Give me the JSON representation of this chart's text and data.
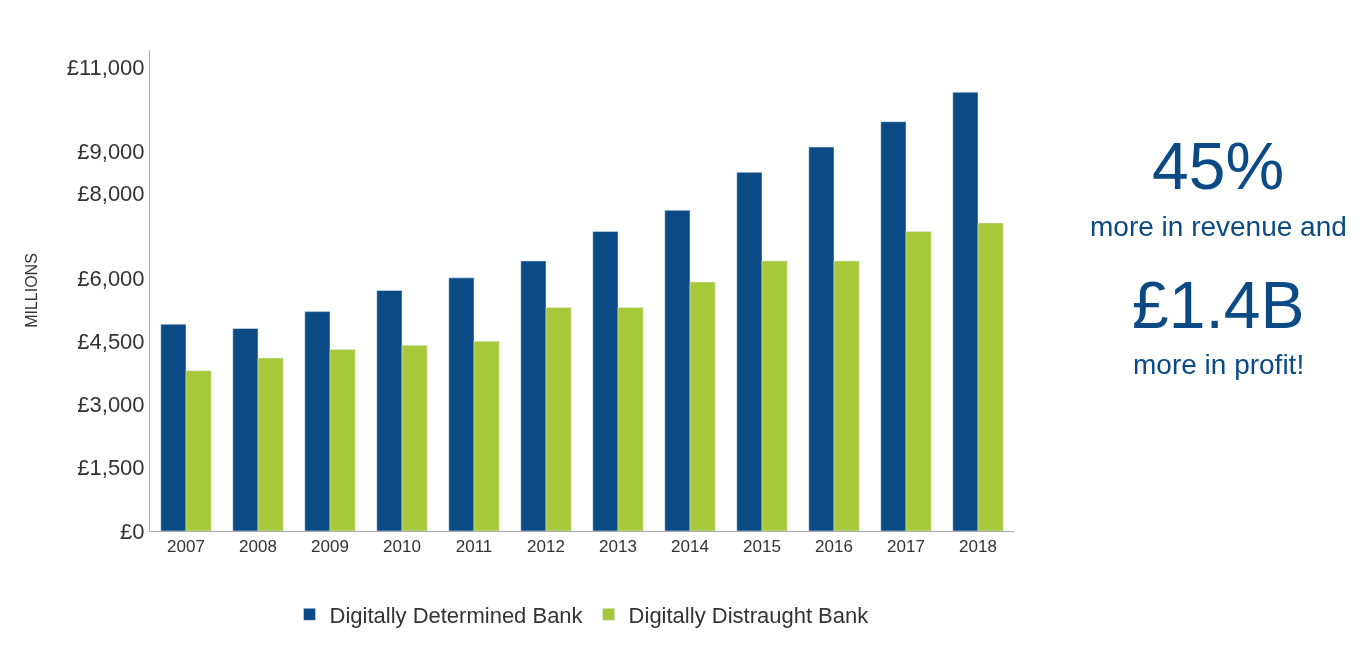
{
  "chart_data": {
    "type": "bar",
    "ylabel": "MILLIONS",
    "categories": [
      "2007",
      "2008",
      "2009",
      "2010",
      "2011",
      "2012",
      "2013",
      "2014",
      "2015",
      "2016",
      "2017",
      "2018"
    ],
    "series": [
      {
        "name": "Digitally Determined Bank",
        "color": "#0b4a85",
        "values": [
          4900,
          4800,
          5200,
          5700,
          6000,
          6400,
          7100,
          7600,
          8500,
          9100,
          9700,
          10400
        ]
      },
      {
        "name": "Digitally Distraught Bank",
        "color": "#a6c93a",
        "values": [
          3800,
          4100,
          4300,
          4400,
          4500,
          5300,
          5300,
          5900,
          6400,
          6400,
          7100,
          7300
        ]
      }
    ],
    "ylim": [
      0,
      11400
    ],
    "yticks": [
      {
        "value": 0,
        "label": "£0"
      },
      {
        "value": 1500,
        "label": "£1,500"
      },
      {
        "value": 3000,
        "label": "£3,000"
      },
      {
        "value": 4500,
        "label": "£4,500"
      },
      {
        "value": 6000,
        "label": "£6,000"
      },
      {
        "value": 8000,
        "label": "£8,000"
      },
      {
        "value": 9000,
        "label": "£9,000"
      },
      {
        "value": 11000,
        "label": "£11,000"
      }
    ],
    "legend": "bottom",
    "annotations": [
      "45%",
      "more in revenue and",
      "£1.4B",
      "more in profit!"
    ]
  }
}
